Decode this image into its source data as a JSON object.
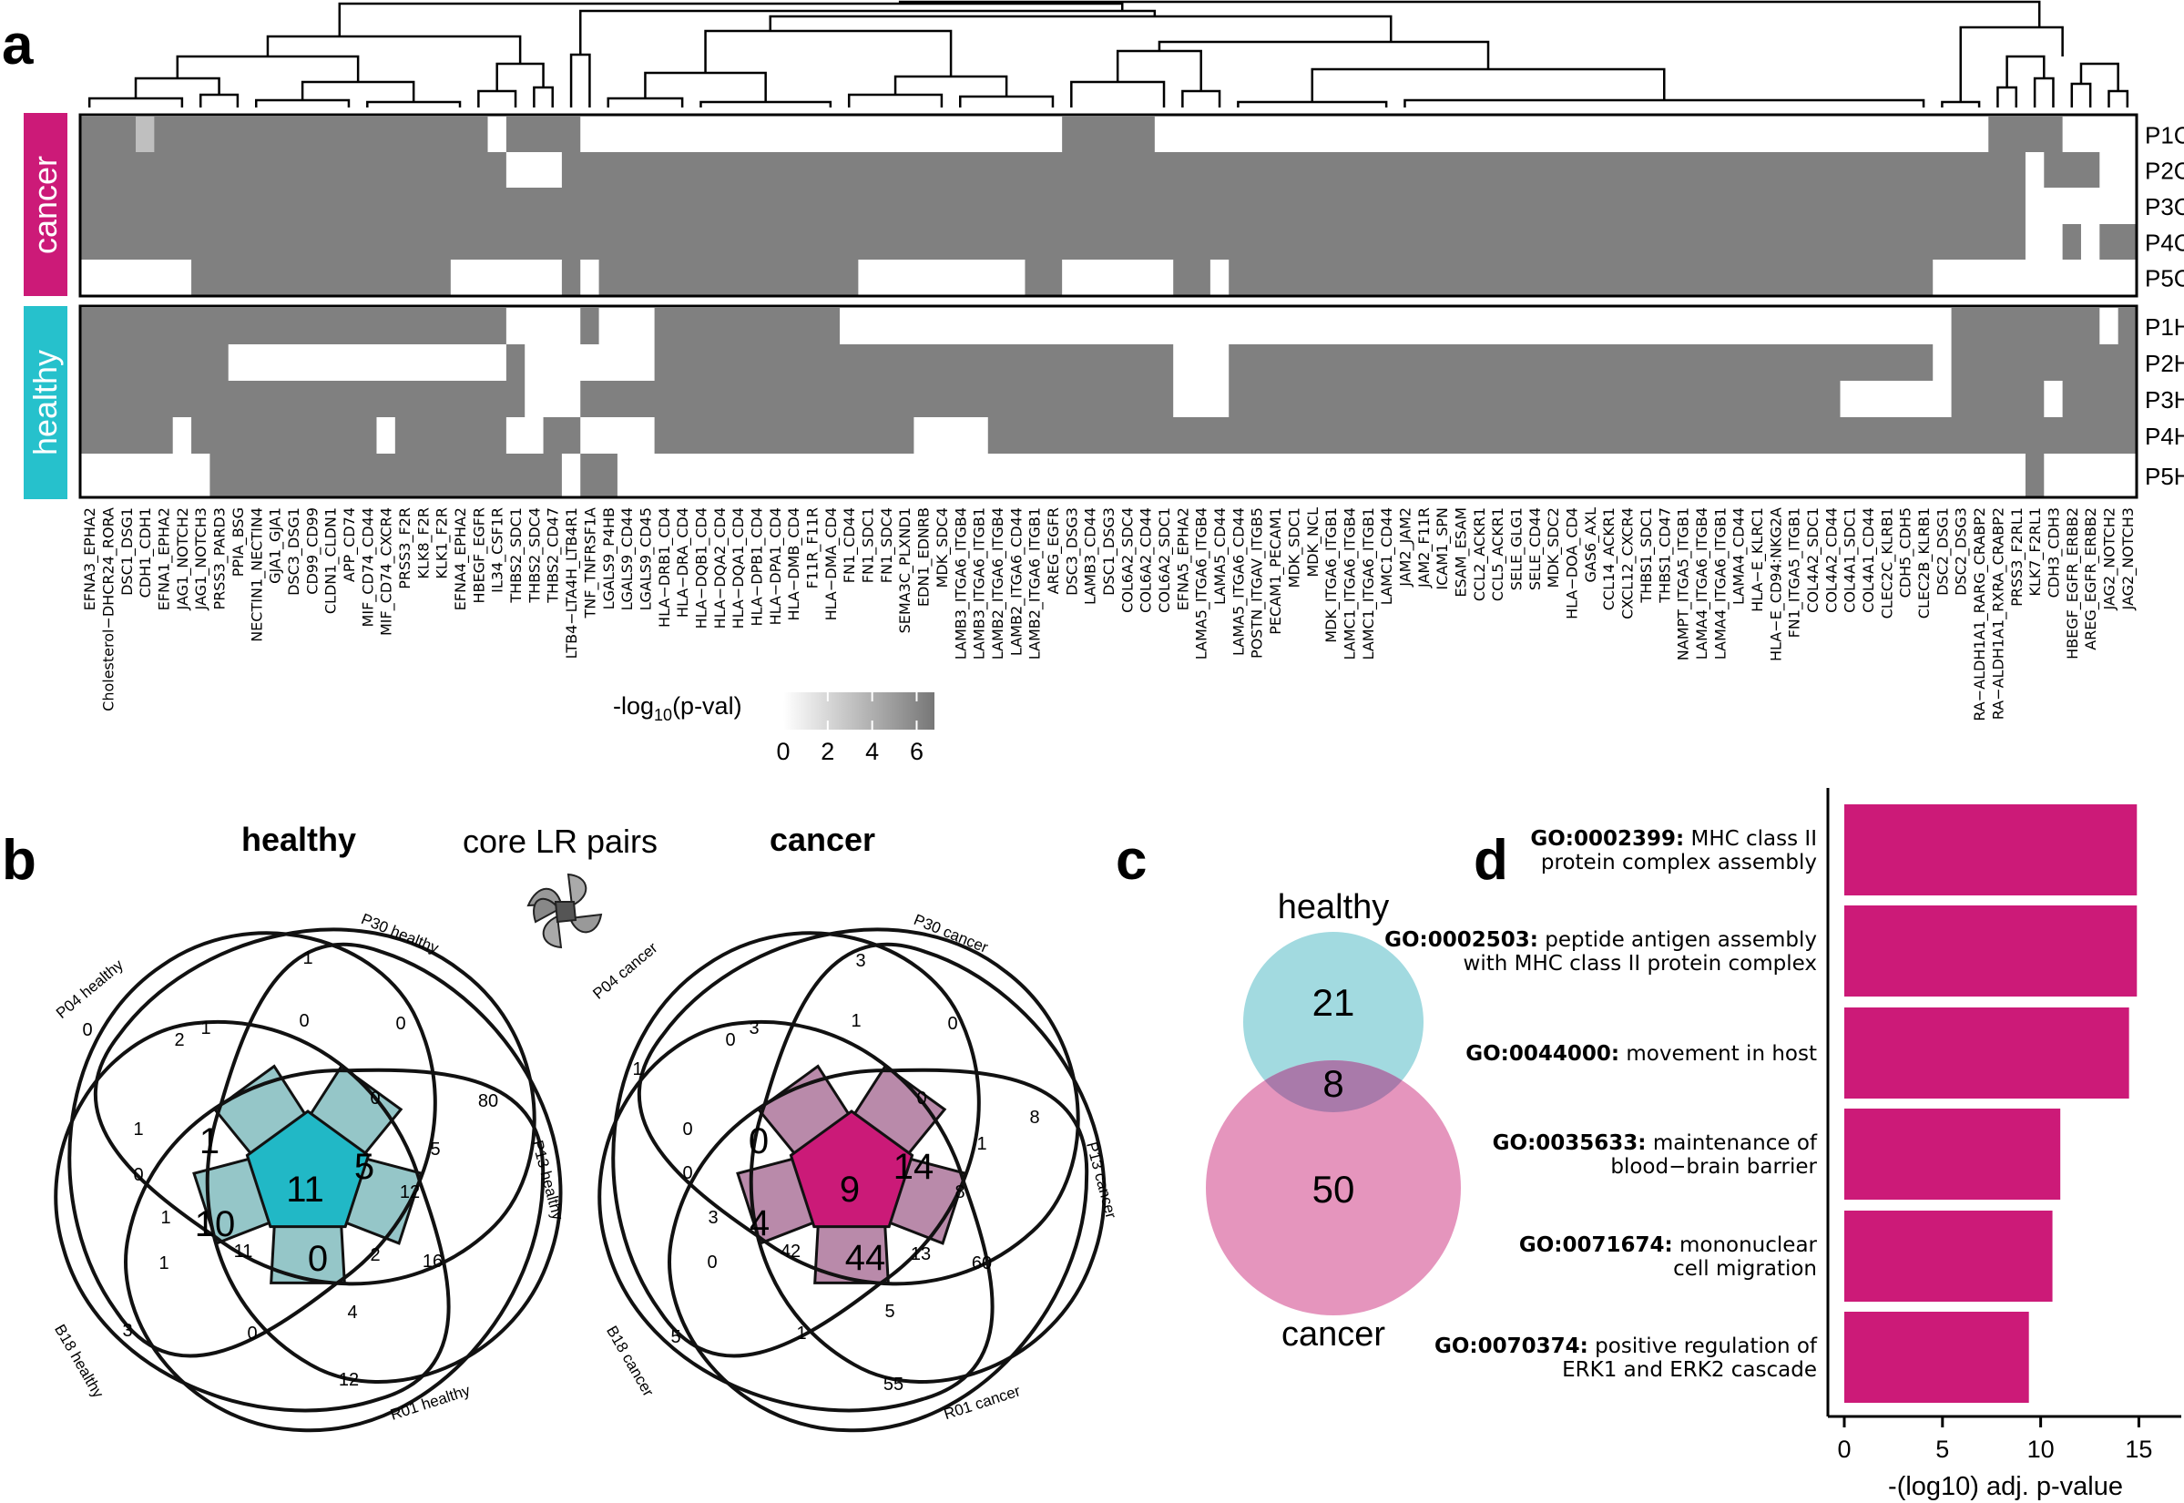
{
  "panel_labels": {
    "a": "a",
    "b": "b",
    "c": "c",
    "d": "d"
  },
  "colors": {
    "cancer": "#cc1a78",
    "healthy": "#26c1cc",
    "cell_on": "#808080",
    "cell_light": "#bfbfbf",
    "venn_healthy": "#a2dae0",
    "venn_cancer": "#e595bd",
    "venn_overlap": "#a97aaa",
    "core_healthy": "#21b8c6",
    "core_cancer": "#cb1a78",
    "ring_healthy": "#95c6c8",
    "ring_cancer": "#b98aaa"
  },
  "panel_a": {
    "group_labels": {
      "cancer": "cancer",
      "healthy": "healthy"
    },
    "row_labels": [
      "P1C",
      "P2C",
      "P3C",
      "P4C",
      "P5C",
      "P1H",
      "P2H",
      "P3H",
      "P4H",
      "P5H"
    ],
    "column_labels": [
      "EFNA3_EPHA2",
      "Cholesterol−DHCR24_RORA",
      "DSC1_DSG1",
      "CDH1_CDH1",
      "EFNA1_EPHA2",
      "JAG1_NOTCH2",
      "JAG1_NOTCH3",
      "PRSS3_PARD3",
      "PPIA_BSG",
      "NECTIN1_NECTIN4",
      "GJA1_GJA1",
      "DSC3_DSG1",
      "CD99_CD99",
      "CLDN1_CLDN1",
      "APP_CD74",
      "MIF_CD74_CD44",
      "MIF_CD74_CXCR4",
      "PRSS3_F2R",
      "KLK8_F2R",
      "KLK1_F2R",
      "EFNA4_EPHA2",
      "HBEGF_EGFR",
      "IL34_CSF1R",
      "THBS2_SDC1",
      "THBS2_SDC4",
      "THBS2_CD47",
      "LTB4−LTA4H_LTB4R1",
      "TNF_TNFRSF1A",
      "LGALS9_P4HB",
      "LGALS9_CD44",
      "LGALS9_CD45",
      "HLA−DRB1_CD4",
      "HLA−DRA_CD4",
      "HLA−DQB1_CD4",
      "HLA−DQA2_CD4",
      "HLA−DQA1_CD4",
      "HLA−DPB1_CD4",
      "HLA−DPA1_CD4",
      "HLA−DMB_CD4",
      "F11R_F11R",
      "HLA−DMA_CD4",
      "FN1_CD44",
      "FN1_SDC1",
      "FN1_SDC4",
      "SEMA3C_PLXND1",
      "EDN1_EDNRB",
      "MDK_SDC4",
      "LAMB3_ITGA6_ITGB4",
      "LAMB3_ITGA6_ITGB1",
      "LAMB2_ITGA6_ITGB4",
      "LAMB2_ITGA6_CD44",
      "LAMB2_ITGA6_ITGB1",
      "AREG_EGFR",
      "DSC3_DSG3",
      "LAMB3_CD44",
      "DSC1_DSG3",
      "COL6A2_SDC4",
      "COL6A2_CD44",
      "COL6A2_SDC1",
      "EFNA5_EPHA2",
      "LAMA5_ITGA6_ITGB4",
      "LAMA5_CD44",
      "LAMA5_ITGA6_CD44",
      "POSTN_ITGAV_ITGB5",
      "PECAM1_PECAM1",
      "MDK_SDC1",
      "MDK_NCL",
      "MDK_ITGA6_ITGB1",
      "LAMC1_ITGA6_ITGB4",
      "LAMC1_ITGA6_ITGB1",
      "LAMC1_CD44",
      "JAM2_JAM2",
      "JAM2_F11R",
      "ICAM1_SPN",
      "ESAM_ESAM",
      "CCL2_ACKR1",
      "CCL5_ACKR1",
      "SELE_GLG1",
      "SELE_CD44",
      "MDK_SDC2",
      "HLA−DOA_CD4",
      "GAS6_AXL",
      "CCL14_ACKR1",
      "CXCL12_CXCR4",
      "THBS1_SDC1",
      "THBS1_CD47",
      "NAMPT_ITGA5_ITGB1",
      "LAMA4_ITGA6_ITGB4",
      "LAMA4_ITGA6_ITGB1",
      "LAMA4_CD44",
      "HLA−E_KLRC1",
      "HLA−E_CD94:NKG2A",
      "FN1_ITGA5_ITGB1",
      "COL4A2_SDC1",
      "COL4A2_CD44",
      "COL4A1_SDC1",
      "COL4A1_CD44",
      "CLEC2C_KLRB1",
      "CDH5_CDH5",
      "CLEC2B_KLRB1",
      "DSC2_DSG1",
      "DSC2_DSG3",
      "RA−ALDH1A1_RARG_CRABP2",
      "RA−ALDH1A1_RXRA_CRABP2",
      "PRSS3_F2RL1",
      "KLK7_F2RL1",
      "CDH3_CDH3",
      "HBEGF_EGFR_ERBB2",
      "AREG_EGFR_ERBB2",
      "JAG2_NOTCH2",
      "JAG2_NOTCH3"
    ],
    "white_segments": [
      {
        "row": 0,
        "from": 22,
        "to": 22
      },
      {
        "row": 0,
        "from": 27,
        "to": 52
      },
      {
        "row": 0,
        "from": 58,
        "to": 102
      },
      {
        "row": 0,
        "from": 107,
        "to": 110
      },
      {
        "row": 1,
        "from": 23,
        "to": 25
      },
      {
        "row": 1,
        "from": 105,
        "to": 105
      },
      {
        "row": 1,
        "from": 109,
        "to": 110
      },
      {
        "row": 2,
        "from": 105,
        "to": 110
      },
      {
        "row": 3,
        "from": 105,
        "to": 106
      },
      {
        "row": 3,
        "from": 108,
        "to": 108
      },
      {
        "row": 4,
        "from": 0,
        "to": 5
      },
      {
        "row": 4,
        "from": 20,
        "to": 25
      },
      {
        "row": 4,
        "from": 27,
        "to": 27
      },
      {
        "row": 4,
        "from": 42,
        "to": 50
      },
      {
        "row": 4,
        "from": 53,
        "to": 58
      },
      {
        "row": 4,
        "from": 61,
        "to": 61
      },
      {
        "row": 4,
        "from": 100,
        "to": 110
      },
      {
        "row": 5,
        "from": 23,
        "to": 26
      },
      {
        "row": 5,
        "from": 28,
        "to": 30
      },
      {
        "row": 5,
        "from": 41,
        "to": 100
      },
      {
        "row": 5,
        "from": 109,
        "to": 109
      },
      {
        "row": 6,
        "from": 8,
        "to": 22
      },
      {
        "row": 6,
        "from": 24,
        "to": 30
      },
      {
        "row": 6,
        "from": 59,
        "to": 61
      },
      {
        "row": 6,
        "from": 100,
        "to": 100
      },
      {
        "row": 7,
        "from": 24,
        "to": 26
      },
      {
        "row": 7,
        "from": 59,
        "to": 61
      },
      {
        "row": 7,
        "from": 95,
        "to": 100
      },
      {
        "row": 7,
        "from": 106,
        "to": 106
      },
      {
        "row": 8,
        "from": 5,
        "to": 5
      },
      {
        "row": 8,
        "from": 16,
        "to": 16
      },
      {
        "row": 8,
        "from": 23,
        "to": 24
      },
      {
        "row": 8,
        "from": 27,
        "to": 30
      },
      {
        "row": 8,
        "from": 45,
        "to": 48
      },
      {
        "row": 9,
        "from": 0,
        "to": 6
      },
      {
        "row": 9,
        "from": 26,
        "to": 26
      },
      {
        "row": 9,
        "from": 29,
        "to": 104
      },
      {
        "row": 9,
        "from": 106,
        "to": 110
      }
    ],
    "light_cells": [
      {
        "row": 0,
        "col": 3
      }
    ],
    "colorbar": {
      "title": "-log10(p-val)",
      "title_base": "-log",
      "title_sub": "10",
      "title_tail": "(p-val)",
      "ticks": [
        "0",
        "2",
        "4",
        "6"
      ],
      "range": [
        0,
        6.8
      ]
    }
  },
  "panel_b": {
    "label": "core LR pairs",
    "healthy": {
      "title": "healthy",
      "set_labels": [
        "P04 healthy",
        "P30 healthy",
        "P13 healthy",
        "R01 healthy",
        "B18 healthy"
      ],
      "counts": [
        "0",
        "1",
        "80",
        "12",
        "3",
        "1",
        "0",
        "0",
        "5",
        "16",
        "2",
        "4",
        "0",
        "1",
        "0",
        "1",
        "2",
        "0",
        "12",
        "11",
        "1",
        "1",
        "11",
        "10",
        "5",
        "0"
      ]
    },
    "cancer": {
      "title": "cancer",
      "set_labels": [
        "P04 cancer",
        "P30 cancer",
        "P13 cancer",
        "R01 cancer",
        "B18 cancer"
      ],
      "counts": [
        "1",
        "3",
        "8",
        "55",
        "5",
        "3",
        "1",
        "0",
        "1",
        "60",
        "13",
        "5",
        "1",
        "0",
        "0",
        "0",
        "0",
        "0",
        "8",
        "42",
        "3",
        "0",
        "9",
        "4",
        "14",
        "44"
      ]
    }
  },
  "panel_c": {
    "set_a": "healthy",
    "set_b": "cancer",
    "only_a": "21",
    "overlap": "8",
    "only_b": "50"
  },
  "panel_d": {
    "xlabel": "-(log10) adj. p-value",
    "chart_data": {
      "type": "bar",
      "orientation": "horizontal",
      "categories": [
        {
          "id": "GO:0002399",
          "desc_lines": [
            "MHC class II",
            "protein complex assembly"
          ]
        },
        {
          "id": "GO:0002503",
          "desc_lines": [
            "peptide antigen assembly",
            "with MHC class II protein complex"
          ]
        },
        {
          "id": "GO:0044000",
          "desc_lines": [
            "movement in host"
          ]
        },
        {
          "id": "GO:0035633",
          "desc_lines": [
            "maintenance of",
            "blood−brain barrier"
          ]
        },
        {
          "id": "GO:0071674",
          "desc_lines": [
            "mononuclear",
            "cell migration"
          ]
        },
        {
          "id": "GO:0070374",
          "desc_lines": [
            "positive regulation of",
            "ERK1 and ERK2 cascade"
          ]
        }
      ],
      "values": [
        14.9,
        14.9,
        14.5,
        11.0,
        10.6,
        9.4
      ],
      "xlim": [
        0,
        16
      ],
      "xticks": [
        "0",
        "5",
        "10",
        "15"
      ],
      "color": "#cc1a78"
    }
  }
}
